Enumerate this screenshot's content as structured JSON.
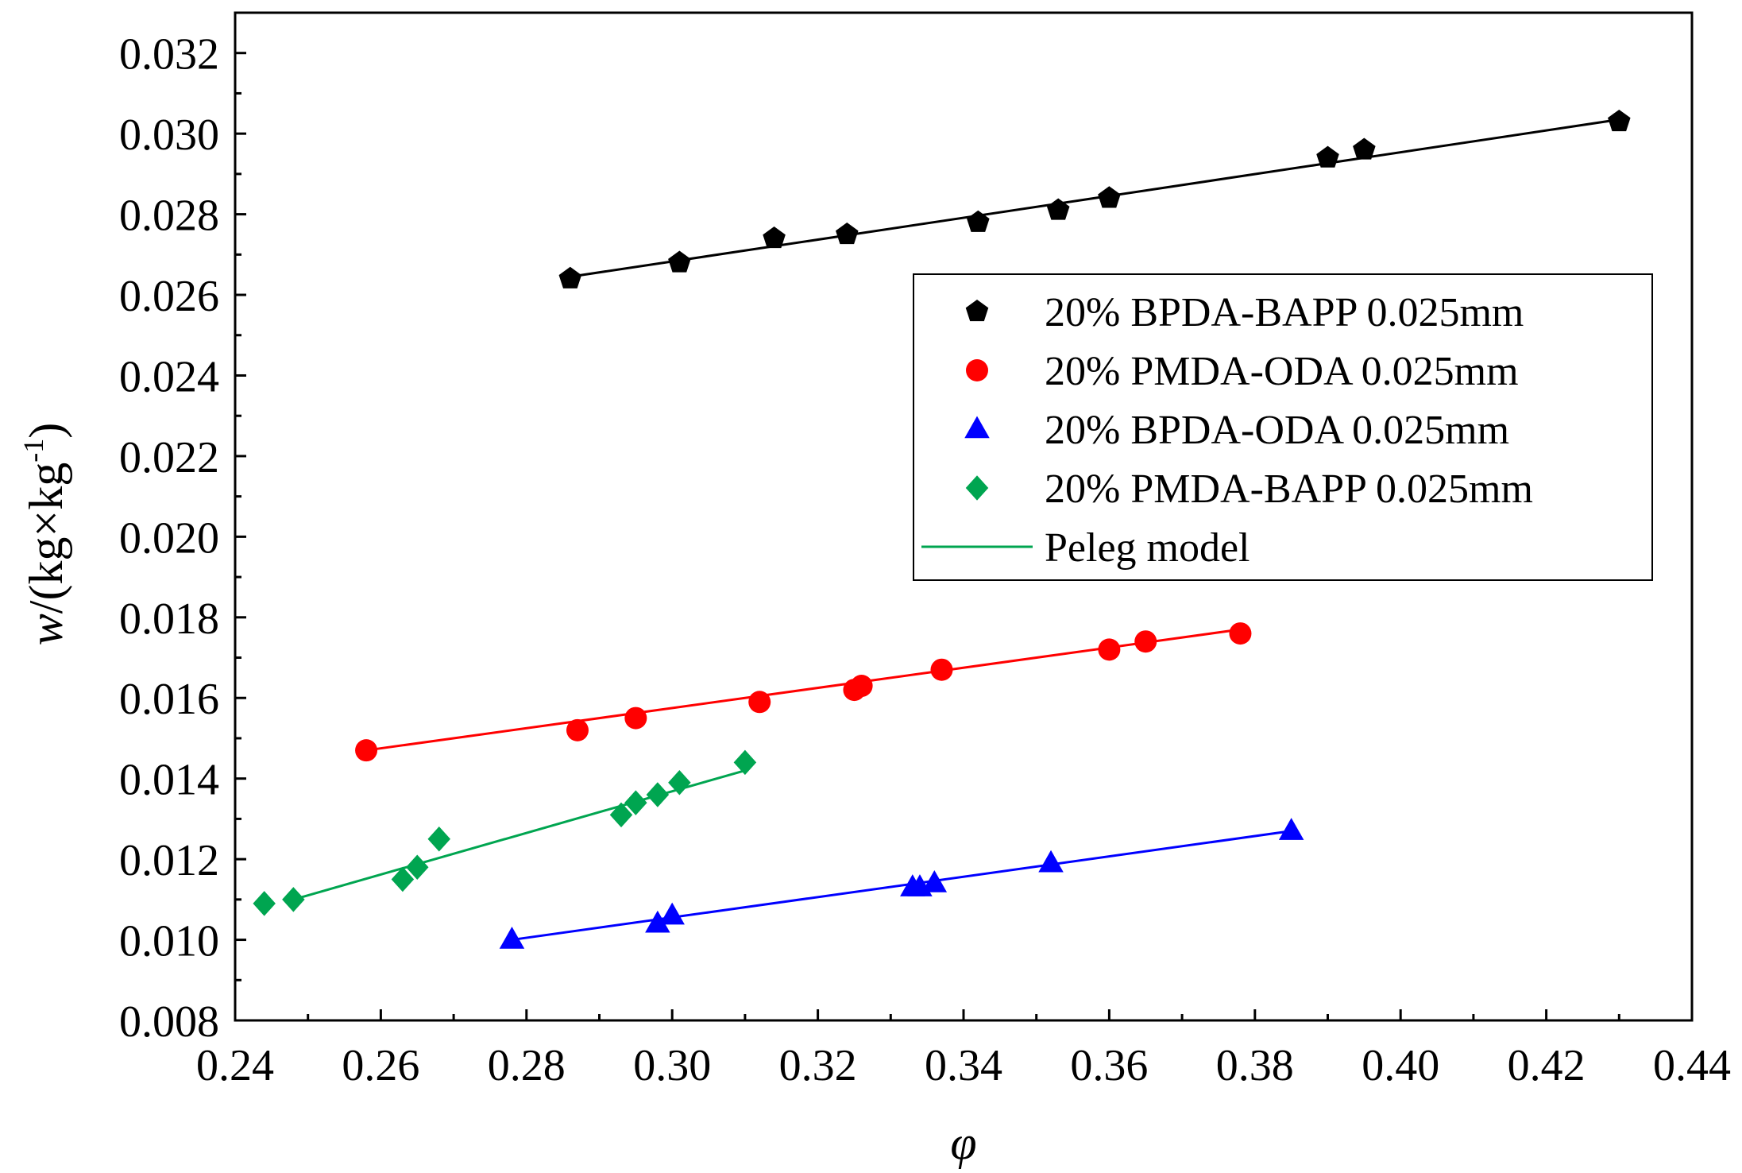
{
  "chart_data": {
    "type": "scatter",
    "title": "",
    "xlabel": "φ",
    "ylabel_var": "w",
    "ylabel_units": "/(kg×kg",
    "ylabel_exp": "-1",
    "ylabel_close": ")",
    "xlim": [
      0.24,
      0.44
    ],
    "ylim": [
      0.008,
      0.033
    ],
    "xticks": [
      "0.24",
      "0.26",
      "0.28",
      "0.30",
      "0.32",
      "0.34",
      "0.36",
      "0.38",
      "0.40",
      "0.42",
      "0.44"
    ],
    "yticks": [
      "0.008",
      "0.010",
      "0.012",
      "0.014",
      "0.016",
      "0.018",
      "0.020",
      "0.022",
      "0.024",
      "0.026",
      "0.028",
      "0.030",
      "0.032"
    ],
    "legend_position": "upper-right",
    "series": [
      {
        "name": "20% BPDA-BAPP 0.025mm",
        "marker": "pentagon",
        "color": "#000000",
        "x": [
          0.286,
          0.301,
          0.314,
          0.324,
          0.342,
          0.353,
          0.36,
          0.39,
          0.395,
          0.43
        ],
        "y": [
          0.0264,
          0.0268,
          0.0274,
          0.0275,
          0.0278,
          0.0281,
          0.0284,
          0.0294,
          0.0296,
          0.0303
        ],
        "fit_x": [
          0.286,
          0.43
        ],
        "fit_y": [
          0.02645,
          0.03035
        ]
      },
      {
        "name": "20% PMDA-ODA 0.025mm",
        "marker": "circle",
        "color": "#ff0000",
        "x": [
          0.258,
          0.287,
          0.295,
          0.312,
          0.325,
          0.326,
          0.337,
          0.36,
          0.365,
          0.378
        ],
        "y": [
          0.0147,
          0.0152,
          0.0155,
          0.0159,
          0.0162,
          0.0163,
          0.0167,
          0.0172,
          0.0174,
          0.0176
        ],
        "fit_x": [
          0.258,
          0.378
        ],
        "fit_y": [
          0.0147,
          0.0177
        ]
      },
      {
        "name": "20% BPDA-ODA 0.025mm",
        "marker": "triangle",
        "color": "#0000ff",
        "x": [
          0.278,
          0.298,
          0.3,
          0.333,
          0.334,
          0.336,
          0.352,
          0.385
        ],
        "y": [
          0.01,
          0.0104,
          0.0106,
          0.0113,
          0.0113,
          0.0114,
          0.0119,
          0.0127
        ],
        "fit_x": [
          0.278,
          0.385
        ],
        "fit_y": [
          0.01,
          0.0127
        ]
      },
      {
        "name": "20% PMDA-BAPP 0.025mm",
        "marker": "diamond",
        "color": "#00a550",
        "x": [
          0.244,
          0.248,
          0.263,
          0.265,
          0.268,
          0.293,
          0.295,
          0.298,
          0.301,
          0.31
        ],
        "y": [
          0.0109,
          0.011,
          0.0115,
          0.0118,
          0.0125,
          0.0131,
          0.0134,
          0.0136,
          0.0139,
          0.0144
        ],
        "fit_x": [
          0.248,
          0.31
        ],
        "fit_y": [
          0.011,
          0.0142
        ]
      }
    ],
    "model_line": {
      "name": "Peleg model",
      "color": "#00a550"
    }
  }
}
